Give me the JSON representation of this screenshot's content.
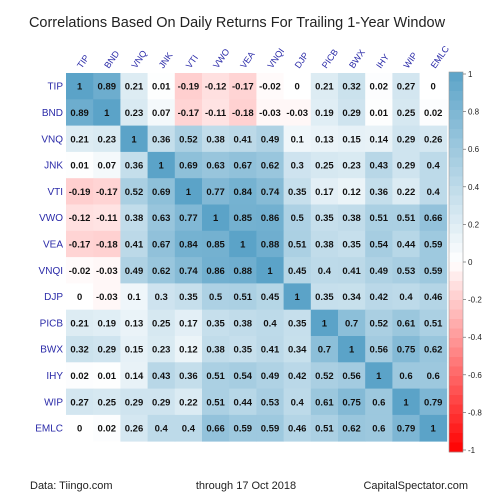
{
  "chart_data": {
    "type": "heatmap",
    "title": "Correlations Based On Daily Returns For Trailing 1-Year Window",
    "labels": [
      "TIP",
      "BND",
      "VNQ",
      "JNK",
      "VTI",
      "VWO",
      "VEA",
      "VNQI",
      "DJP",
      "PICB",
      "BWX",
      "IHY",
      "WIP",
      "EMLC"
    ],
    "values": [
      [
        1,
        0.89,
        0.21,
        0.01,
        -0.19,
        -0.12,
        -0.17,
        -0.02,
        0,
        0.21,
        0.32,
        0.02,
        0.27,
        0
      ],
      [
        0.89,
        1,
        0.23,
        0.07,
        -0.17,
        -0.11,
        -0.18,
        -0.03,
        -0.03,
        0.19,
        0.29,
        0.01,
        0.25,
        0.02
      ],
      [
        0.21,
        0.23,
        1,
        0.36,
        0.52,
        0.38,
        0.41,
        0.49,
        0.1,
        0.13,
        0.15,
        0.14,
        0.29,
        0.26
      ],
      [
        0.01,
        0.07,
        0.36,
        1,
        0.69,
        0.63,
        0.67,
        0.62,
        0.3,
        0.25,
        0.23,
        0.43,
        0.29,
        0.4
      ],
      [
        -0.19,
        -0.17,
        0.52,
        0.69,
        1,
        0.77,
        0.84,
        0.74,
        0.35,
        0.17,
        0.12,
        0.36,
        0.22,
        0.4
      ],
      [
        -0.12,
        -0.11,
        0.38,
        0.63,
        0.77,
        1,
        0.85,
        0.86,
        0.5,
        0.35,
        0.38,
        0.51,
        0.51,
        0.66
      ],
      [
        -0.17,
        -0.18,
        0.41,
        0.67,
        0.84,
        0.85,
        1,
        0.88,
        0.51,
        0.38,
        0.35,
        0.54,
        0.44,
        0.59
      ],
      [
        -0.02,
        -0.03,
        0.49,
        0.62,
        0.74,
        0.86,
        0.88,
        1,
        0.45,
        0.4,
        0.41,
        0.49,
        0.53,
        0.59
      ],
      [
        0,
        -0.03,
        0.1,
        0.3,
        0.35,
        0.5,
        0.51,
        0.45,
        1,
        0.35,
        0.34,
        0.42,
        0.4,
        0.46
      ],
      [
        0.21,
        0.19,
        0.13,
        0.25,
        0.17,
        0.35,
        0.38,
        0.4,
        0.35,
        1,
        0.7,
        0.52,
        0.61,
        0.51
      ],
      [
        0.32,
        0.29,
        0.15,
        0.23,
        0.12,
        0.38,
        0.35,
        0.41,
        0.34,
        0.7,
        1,
        0.56,
        0.75,
        0.62
      ],
      [
        0.02,
        0.01,
        0.14,
        0.43,
        0.36,
        0.51,
        0.54,
        0.49,
        0.42,
        0.52,
        0.56,
        1,
        0.6,
        0.6
      ],
      [
        0.27,
        0.25,
        0.29,
        0.29,
        0.22,
        0.51,
        0.44,
        0.53,
        0.4,
        0.61,
        0.75,
        0.6,
        1,
        0.79
      ],
      [
        0,
        0.02,
        0.26,
        0.4,
        0.4,
        0.66,
        0.59,
        0.59,
        0.46,
        0.51,
        0.62,
        0.6,
        0.79,
        1
      ]
    ],
    "color_scale": {
      "range": [
        -1,
        1
      ],
      "ticks": [
        "1",
        "0.8",
        "0.6",
        "0.4",
        "0.2",
        "0",
        "-0.2",
        "-0.4",
        "-0.6",
        "-0.8",
        "-1"
      ],
      "positive_color": "#5ba3c8",
      "negative_color": "#ff0000",
      "neutral_color": "#ffffff"
    },
    "legend": "right"
  },
  "footer": {
    "source": "Data: Tiingo.com",
    "date": "through 17 Oct 2018",
    "brand": "CapitalSpectator.com"
  }
}
